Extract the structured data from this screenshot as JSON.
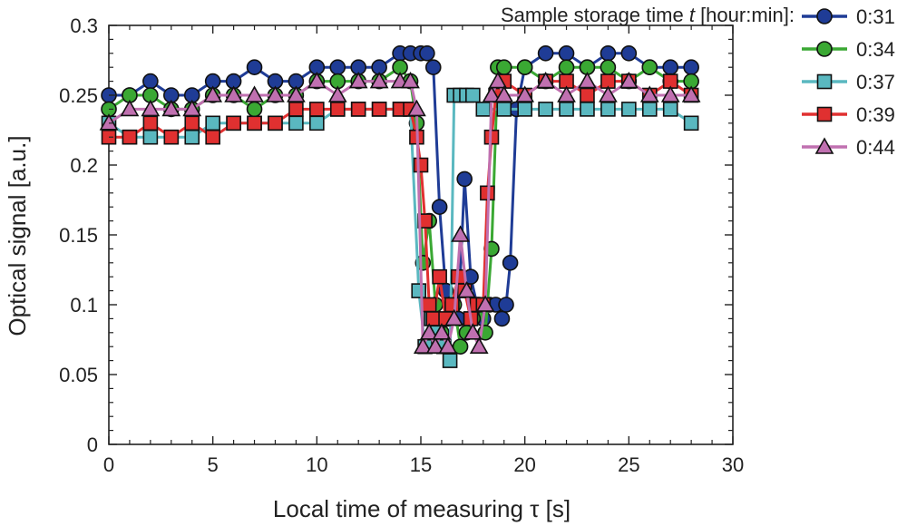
{
  "chart_data": {
    "type": "line",
    "xlabel": "Local time of measuring τ [s]",
    "ylabel": "Optical signal [a.u.]",
    "xlim": [
      0,
      30
    ],
    "ylim": [
      0,
      0.3
    ],
    "xticks": [
      "0",
      "5",
      "10",
      "15",
      "20",
      "25",
      "30"
    ],
    "yticks": [
      "0",
      "0.05",
      "0.1",
      "0.15",
      "0.2",
      "0.25",
      "0.3"
    ],
    "grid": false,
    "legend": {
      "title_prefix": "Sample storage time ",
      "title_var": "t",
      "title_suffix": " [hour:min]:",
      "placement": "top-right"
    },
    "series": [
      {
        "name": "0:31",
        "color": "#1f3c96",
        "marker": "circle",
        "x": [
          0,
          1,
          2,
          3,
          4,
          5,
          6,
          7,
          8,
          9,
          10,
          11,
          12,
          13,
          14,
          14.5,
          15,
          15.3,
          15.6,
          15.9,
          16.2,
          16.5,
          16.8,
          17.1,
          17.4,
          17.7,
          18,
          18.3,
          18.6,
          18.9,
          19.1,
          19.3,
          19.6,
          20,
          21,
          22,
          23,
          24,
          25,
          26,
          27,
          28
        ],
        "y": [
          0.25,
          0.25,
          0.26,
          0.25,
          0.25,
          0.26,
          0.26,
          0.27,
          0.26,
          0.26,
          0.27,
          0.27,
          0.27,
          0.27,
          0.28,
          0.28,
          0.28,
          0.28,
          0.27,
          0.17,
          0.11,
          0.1,
          0.09,
          0.19,
          0.12,
          0.1,
          0.09,
          0.1,
          0.1,
          0.09,
          0.1,
          0.13,
          0.24,
          0.27,
          0.28,
          0.28,
          0.27,
          0.28,
          0.28,
          0.27,
          0.27,
          0.27
        ]
      },
      {
        "name": "0:34",
        "color": "#3aa833",
        "marker": "circle",
        "x": [
          0,
          1,
          2,
          3,
          4,
          5,
          6,
          7,
          8,
          9,
          10,
          11,
          12,
          13,
          14,
          14.5,
          14.8,
          15.1,
          15.4,
          15.7,
          16,
          16.3,
          16.6,
          16.9,
          17.2,
          17.5,
          17.8,
          18.1,
          18.4,
          18.7,
          19,
          20,
          21,
          22,
          23,
          24,
          25,
          26,
          27,
          28
        ],
        "y": [
          0.24,
          0.25,
          0.25,
          0.24,
          0.24,
          0.25,
          0.25,
          0.24,
          0.25,
          0.25,
          0.26,
          0.26,
          0.26,
          0.26,
          0.27,
          0.26,
          0.23,
          0.13,
          0.16,
          0.1,
          0.08,
          0.09,
          0.1,
          0.07,
          0.08,
          0.09,
          0.1,
          0.08,
          0.14,
          0.27,
          0.27,
          0.27,
          0.26,
          0.27,
          0.27,
          0.27,
          0.26,
          0.27,
          0.26,
          0.26
        ]
      },
      {
        "name": "0:37",
        "color": "#5ab8c0",
        "marker": "square",
        "x": [
          0,
          1,
          2,
          3,
          4,
          5,
          6,
          7,
          8,
          9,
          10,
          11,
          12,
          13,
          14,
          14.5,
          14.9,
          15.2,
          15.5,
          15.8,
          16.1,
          16.4,
          16.6,
          16.9,
          17.2,
          17.5,
          18,
          19,
          20,
          21,
          22,
          23,
          24,
          25,
          26,
          27,
          28
        ],
        "y": [
          0.23,
          0.22,
          0.22,
          0.22,
          0.22,
          0.23,
          0.23,
          0.23,
          0.23,
          0.23,
          0.23,
          0.24,
          0.24,
          0.24,
          0.24,
          0.24,
          0.11,
          0.07,
          0.09,
          0.08,
          0.07,
          0.06,
          0.25,
          0.25,
          0.25,
          0.25,
          0.24,
          0.24,
          0.24,
          0.24,
          0.24,
          0.24,
          0.24,
          0.24,
          0.24,
          0.24,
          0.23
        ]
      },
      {
        "name": "0:39",
        "color": "#e03030",
        "marker": "square",
        "x": [
          0,
          1,
          2,
          3,
          4,
          5,
          6,
          7,
          8,
          9,
          10,
          11,
          12,
          13,
          14,
          14.5,
          14.8,
          15,
          15.2,
          15.4,
          15.6,
          15.9,
          16.2,
          16.5,
          16.8,
          17.1,
          17.4,
          17.7,
          18,
          18.2,
          18.4,
          18.6,
          19,
          20,
          21,
          22,
          23,
          24,
          25,
          26,
          27,
          28
        ],
        "y": [
          0.22,
          0.22,
          0.23,
          0.22,
          0.23,
          0.22,
          0.23,
          0.23,
          0.23,
          0.24,
          0.24,
          0.24,
          0.24,
          0.24,
          0.24,
          0.24,
          0.22,
          0.2,
          0.16,
          0.1,
          0.09,
          0.12,
          0.09,
          0.1,
          0.12,
          0.11,
          0.09,
          0.1,
          0.1,
          0.18,
          0.22,
          0.25,
          0.26,
          0.25,
          0.26,
          0.26,
          0.25,
          0.26,
          0.26,
          0.25,
          0.26,
          0.25
        ]
      },
      {
        "name": "0:44",
        "color": "#c070b0",
        "marker": "triangle",
        "x": [
          0,
          1,
          2,
          3,
          4,
          5,
          6,
          7,
          8,
          9,
          10,
          11,
          12,
          13,
          14,
          14.5,
          14.8,
          15.1,
          15.4,
          15.7,
          16,
          16.3,
          16.6,
          16.9,
          17.2,
          17.5,
          17.8,
          18.1,
          18.4,
          18.7,
          19,
          20,
          21,
          22,
          23,
          24,
          25,
          26,
          27,
          28
        ],
        "y": [
          0.23,
          0.24,
          0.24,
          0.24,
          0.24,
          0.25,
          0.25,
          0.25,
          0.25,
          0.25,
          0.26,
          0.25,
          0.26,
          0.26,
          0.26,
          0.26,
          0.24,
          0.07,
          0.08,
          0.07,
          0.08,
          0.07,
          0.09,
          0.15,
          0.11,
          0.08,
          0.07,
          0.1,
          0.25,
          0.26,
          0.25,
          0.25,
          0.26,
          0.25,
          0.26,
          0.25,
          0.26,
          0.25,
          0.25,
          0.25
        ]
      }
    ]
  }
}
